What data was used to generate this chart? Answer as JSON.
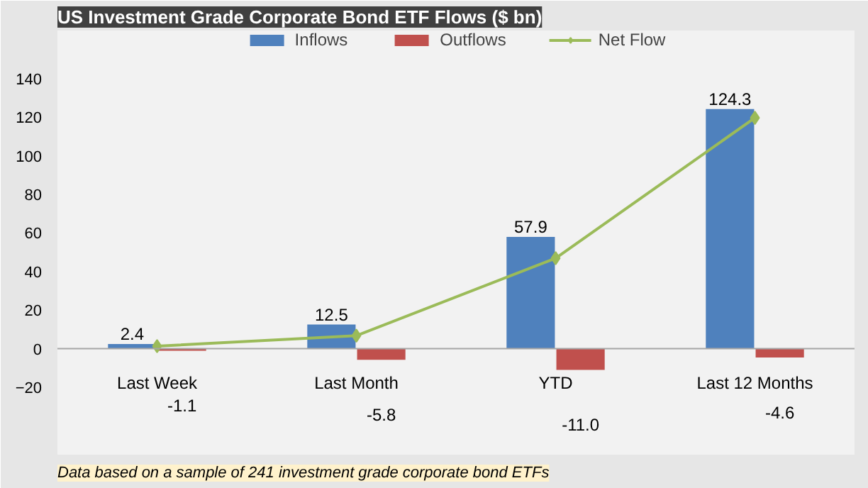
{
  "chart_data": {
    "type": "bar",
    "title": "US Investment Grade Corporate Bond ETF Flows ($ bn)",
    "categories": [
      "Last Week",
      "Last Month",
      "YTD",
      "Last 12 Months"
    ],
    "series": [
      {
        "name": "Inflows",
        "color": "#4f81bd",
        "values": [
          2.4,
          12.5,
          57.9,
          124.3
        ],
        "value_labels": [
          "2.4",
          "12.5",
          "57.9",
          "124.3"
        ]
      },
      {
        "name": "Outflows",
        "color": "#c0504d",
        "values": [
          -1.1,
          -5.8,
          -11.0,
          -4.6
        ],
        "value_labels": [
          "-1.1",
          "-5.8",
          "-11.0",
          "-4.6"
        ]
      },
      {
        "name": "Net Flow",
        "type": "line",
        "color": "#9bbb59",
        "marker": "diamond",
        "values": [
          1.3,
          6.7,
          46.9,
          119.7
        ]
      }
    ],
    "ylim": [
      -55,
      165
    ],
    "yticks": [
      -20,
      0,
      20,
      40,
      60,
      80,
      100,
      120,
      140
    ],
    "grid": false,
    "legend": "top",
    "annotations": [
      "Data based on a sample of 241 investment grade corporate bond ETFs"
    ]
  }
}
